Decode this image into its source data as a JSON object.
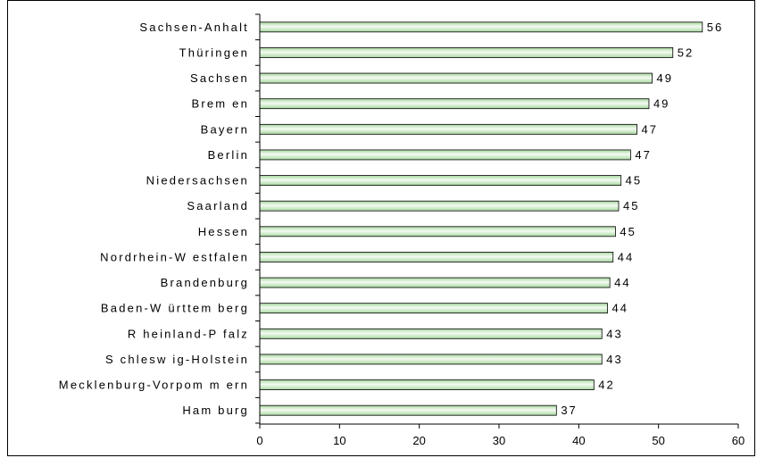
{
  "chart_data": {
    "type": "bar",
    "orientation": "horizontal",
    "title": "",
    "xlabel": "",
    "ylabel": "",
    "xlim": [
      0,
      60
    ],
    "x_ticks": [
      "0",
      "10",
      "20",
      "30",
      "40",
      "50",
      "60"
    ],
    "grid": false,
    "legend": "none",
    "bar_color_start": "#a8d8a0",
    "bar_color_end": "#f4fbf2",
    "categories": [
      "Sachsen-Anhalt",
      "Thüringen",
      "Sachsen",
      "Bremen",
      "Bayern",
      "Berlin",
      "Niedersachsen",
      "Saarland",
      "Hessen",
      "Nordrhein-Westfalen",
      "Brandenburg",
      "Baden-Württemberg",
      "Rheinland-Pfalz",
      "Schleswig-Holstein",
      "Mecklenburg-Vorpommern",
      "Hamburg"
    ],
    "category_texts": [
      "Sachsen-Anhalt",
      "Thüringen",
      "Sachsen",
      "Brem en",
      "Bayern",
      "Berlin",
      "Niedersachsen",
      "Saarland",
      "Hessen",
      "Nordrhein-W estfalen",
      "Brandenburg",
      "Baden-W ürttem berg",
      "R heinland-P falz",
      "S chlesw ig-Holstein",
      "Mecklenburg-Vorpom m ern",
      "Ham burg"
    ],
    "values": [
      55.5,
      51.8,
      49.2,
      48.8,
      47.3,
      46.5,
      45.3,
      45.0,
      44.6,
      44.3,
      43.9,
      43.6,
      42.9,
      42.9,
      41.9,
      37.2
    ],
    "value_labels": [
      "56",
      "52",
      "49",
      "49",
      "47",
      "47",
      "45",
      "45",
      "45",
      "44",
      "44",
      "44",
      "43",
      "43",
      "42",
      "37"
    ]
  }
}
